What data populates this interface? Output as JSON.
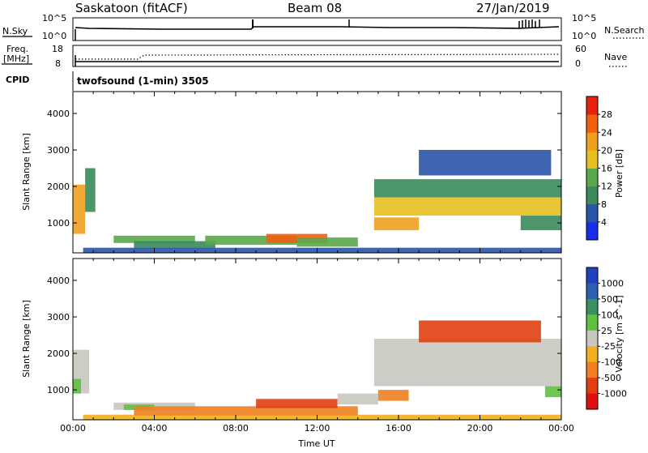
{
  "header": {
    "station": "Saskatoon (fitACF)",
    "beam": "Beam 08",
    "date": "27/Jan/2019"
  },
  "status_panel": {
    "nsky_label": "N.Sky",
    "nsearch_label": "N.Search",
    "nsky_ticks": [
      "10^5",
      "10^0"
    ],
    "nsearch_ticks": [
      "10^5",
      "10^0"
    ],
    "freq_label_1": "Freq.",
    "freq_label_2": "[MHz]",
    "nave_label": "Nave",
    "freq_ticks": [
      "18",
      "8"
    ],
    "nave_ticks": [
      "60",
      "0"
    ],
    "cpid_label": "CPID",
    "cpid_text": "twofsound (1-min) 3505"
  },
  "colors": {
    "power": [
      "#1a2ce6",
      "#2a54a8",
      "#3a8a5a",
      "#5aa84a",
      "#e6c020",
      "#f0a020",
      "#f06010",
      "#e82010"
    ],
    "velocity": [
      "#2040c0",
      "#2a60b0",
      "#3a9060",
      "#60c040",
      "#c8c8c0",
      "#f0b020",
      "#f08020",
      "#e04010",
      "#e01010"
    ]
  },
  "chart_data": [
    {
      "type": "heatmap",
      "name": "power",
      "xlabel": "",
      "ylabel": "Slant Range [km]",
      "yticks": [
        1000,
        2000,
        3000,
        4000
      ],
      "ylim": [
        180,
        4600
      ],
      "x_range_hours": [
        0,
        24
      ],
      "colorbar": {
        "label": "Power [dB]",
        "ticks": [
          "4",
          "8",
          "12",
          "16",
          "20",
          "24",
          "28"
        ]
      },
      "echo_regions": [
        {
          "t0": 0.0,
          "t1": 0.6,
          "r0": 700,
          "r1": 2050,
          "level": 5
        },
        {
          "t0": 0.6,
          "t1": 1.1,
          "r0": 1300,
          "r1": 2500,
          "level": 2
        },
        {
          "t0": 2.0,
          "t1": 6.0,
          "r0": 450,
          "r1": 650,
          "level": 3
        },
        {
          "t0": 3.0,
          "t1": 7.0,
          "r0": 300,
          "r1": 500,
          "level": 2
        },
        {
          "t0": 6.5,
          "t1": 11.0,
          "r0": 400,
          "r1": 650,
          "level": 3
        },
        {
          "t0": 9.5,
          "t1": 12.5,
          "r0": 450,
          "r1": 700,
          "level": 6
        },
        {
          "t0": 11.0,
          "t1": 14.0,
          "r0": 350,
          "r1": 600,
          "level": 3
        },
        {
          "t0": 0.5,
          "t1": 24.0,
          "r0": 180,
          "r1": 320,
          "level": 1
        },
        {
          "t0": 14.8,
          "t1": 24.0,
          "r0": 1200,
          "r1": 1700,
          "level": 4
        },
        {
          "t0": 14.8,
          "t1": 17.0,
          "r0": 800,
          "r1": 1150,
          "level": 5
        },
        {
          "t0": 14.8,
          "t1": 24.0,
          "r0": 1700,
          "r1": 2200,
          "level": 2
        },
        {
          "t0": 17.0,
          "t1": 23.5,
          "r0": 2300,
          "r1": 3000,
          "level": 1
        },
        {
          "t0": 22.0,
          "t1": 24.0,
          "r0": 800,
          "r1": 1200,
          "level": 2
        }
      ]
    },
    {
      "type": "heatmap",
      "name": "velocity",
      "xlabel": "Time UT",
      "ylabel": "Slant Range [km]",
      "yticks": [
        1000,
        2000,
        3000,
        4000
      ],
      "ylim": [
        180,
        4600
      ],
      "x_range_hours": [
        0,
        24
      ],
      "xticks": [
        "00:00",
        "04:00",
        "08:00",
        "12:00",
        "16:00",
        "20:00",
        "00:00"
      ],
      "colorbar": {
        "label": "Velocity [m s^-1]",
        "ticks": [
          "1000",
          "500",
          "100",
          "25",
          "-25",
          "-100",
          "-500",
          "-1000"
        ]
      },
      "echo_regions": [
        {
          "t0": 0.0,
          "t1": 0.8,
          "r0": 900,
          "r1": 2100,
          "level": 4
        },
        {
          "t0": 0.0,
          "t1": 0.4,
          "r0": 900,
          "r1": 1300,
          "level": 3
        },
        {
          "t0": 2.0,
          "t1": 6.0,
          "r0": 450,
          "r1": 650,
          "level": 4
        },
        {
          "t0": 2.5,
          "t1": 4.0,
          "r0": 450,
          "r1": 600,
          "level": 3
        },
        {
          "t0": 0.5,
          "t1": 24.0,
          "r0": 180,
          "r1": 320,
          "level": 5
        },
        {
          "t0": 3.0,
          "t1": 14.0,
          "r0": 300,
          "r1": 550,
          "level": 6
        },
        {
          "t0": 9.0,
          "t1": 13.0,
          "r0": 500,
          "r1": 750,
          "level": 7
        },
        {
          "t0": 13.0,
          "t1": 15.0,
          "r0": 600,
          "r1": 900,
          "level": 4
        },
        {
          "t0": 14.8,
          "t1": 24.0,
          "r0": 1100,
          "r1": 2400,
          "level": 4
        },
        {
          "t0": 15.0,
          "t1": 16.5,
          "r0": 700,
          "r1": 1000,
          "level": 6
        },
        {
          "t0": 17.0,
          "t1": 23.0,
          "r0": 2300,
          "r1": 2900,
          "level": 7
        },
        {
          "t0": 23.2,
          "t1": 24.0,
          "r0": 800,
          "r1": 1100,
          "level": 3
        }
      ]
    }
  ]
}
